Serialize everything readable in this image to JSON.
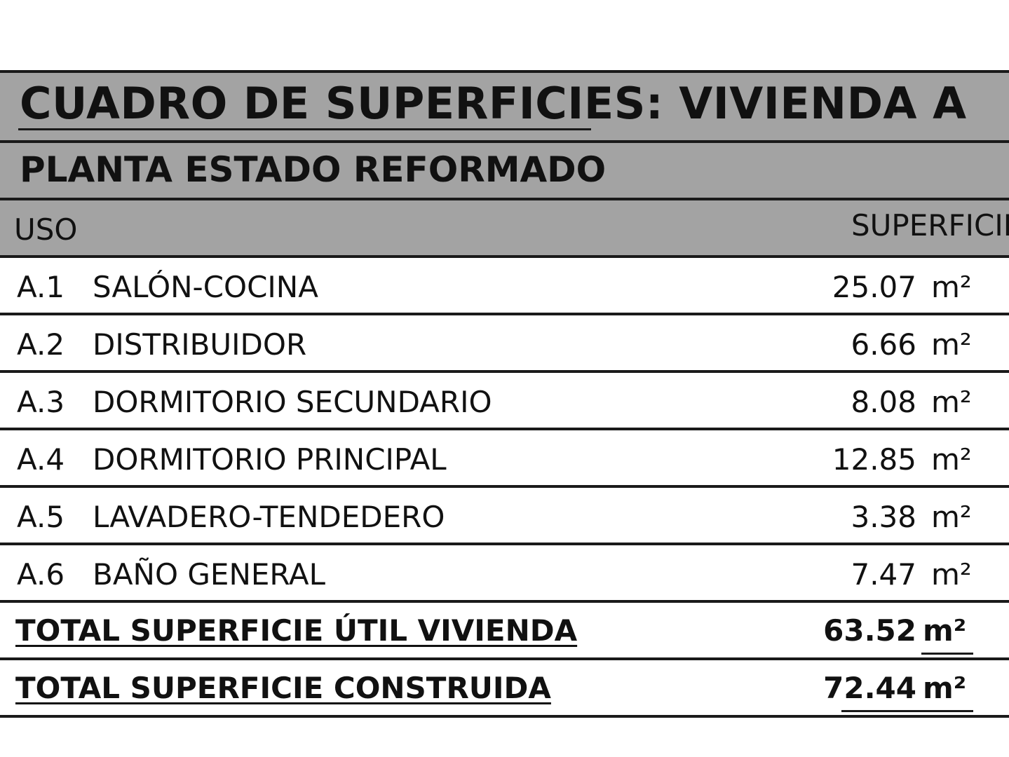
{
  "title": "CUADRO DE SUPERFICIES: VIVIENDA A",
  "subtitle": "PLANTA ESTADO REFORMADO",
  "columns": {
    "uso": "USO",
    "superficie": "SUPERFICIE"
  },
  "rows": [
    {
      "code": "A.1",
      "name": "SALÓN-COCINA",
      "value": "25.07",
      "unit": "m²"
    },
    {
      "code": "A.2",
      "name": "DISTRIBUIDOR",
      "value": "6.66",
      "unit": "m²"
    },
    {
      "code": "A.3",
      "name": "DORMITORIO SECUNDARIO",
      "value": "8.08",
      "unit": "m²"
    },
    {
      "code": "A.4",
      "name": "DORMITORIO PRINCIPAL",
      "value": "12.85",
      "unit": "m²"
    },
    {
      "code": "A.5",
      "name": "LAVADERO-TENDEDERO",
      "value": "3.38",
      "unit": "m²"
    },
    {
      "code": "A.6",
      "name": "BAÑO GENERAL",
      "value": "7.47",
      "unit": "m²"
    }
  ],
  "totals": [
    {
      "label": "TOTAL SUPERFICIE ÚTIL VIVIENDA",
      "value": "63.52",
      "unit": "m²"
    },
    {
      "label": "TOTAL SUPERFICIE CONSTRUIDA",
      "value": "72.44",
      "unit": "m²"
    }
  ],
  "colors": {
    "header_band": "#a3a3a3",
    "rule": "#1a1a1a",
    "text": "#111111"
  }
}
